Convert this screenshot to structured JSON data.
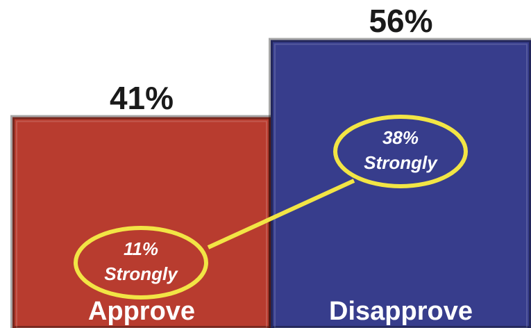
{
  "chart_data": {
    "type": "bar",
    "categories": [
      "Approve",
      "Disapprove"
    ],
    "values": [
      41,
      56
    ],
    "value_labels": [
      "41%",
      "56%"
    ],
    "colors": [
      "#b83c2f",
      "#373d8c"
    ],
    "annotations": [
      {
        "value": 11,
        "label": "11%",
        "text": "Strongly"
      },
      {
        "value": 38,
        "label": "38%",
        "text": "Strongly"
      }
    ]
  }
}
